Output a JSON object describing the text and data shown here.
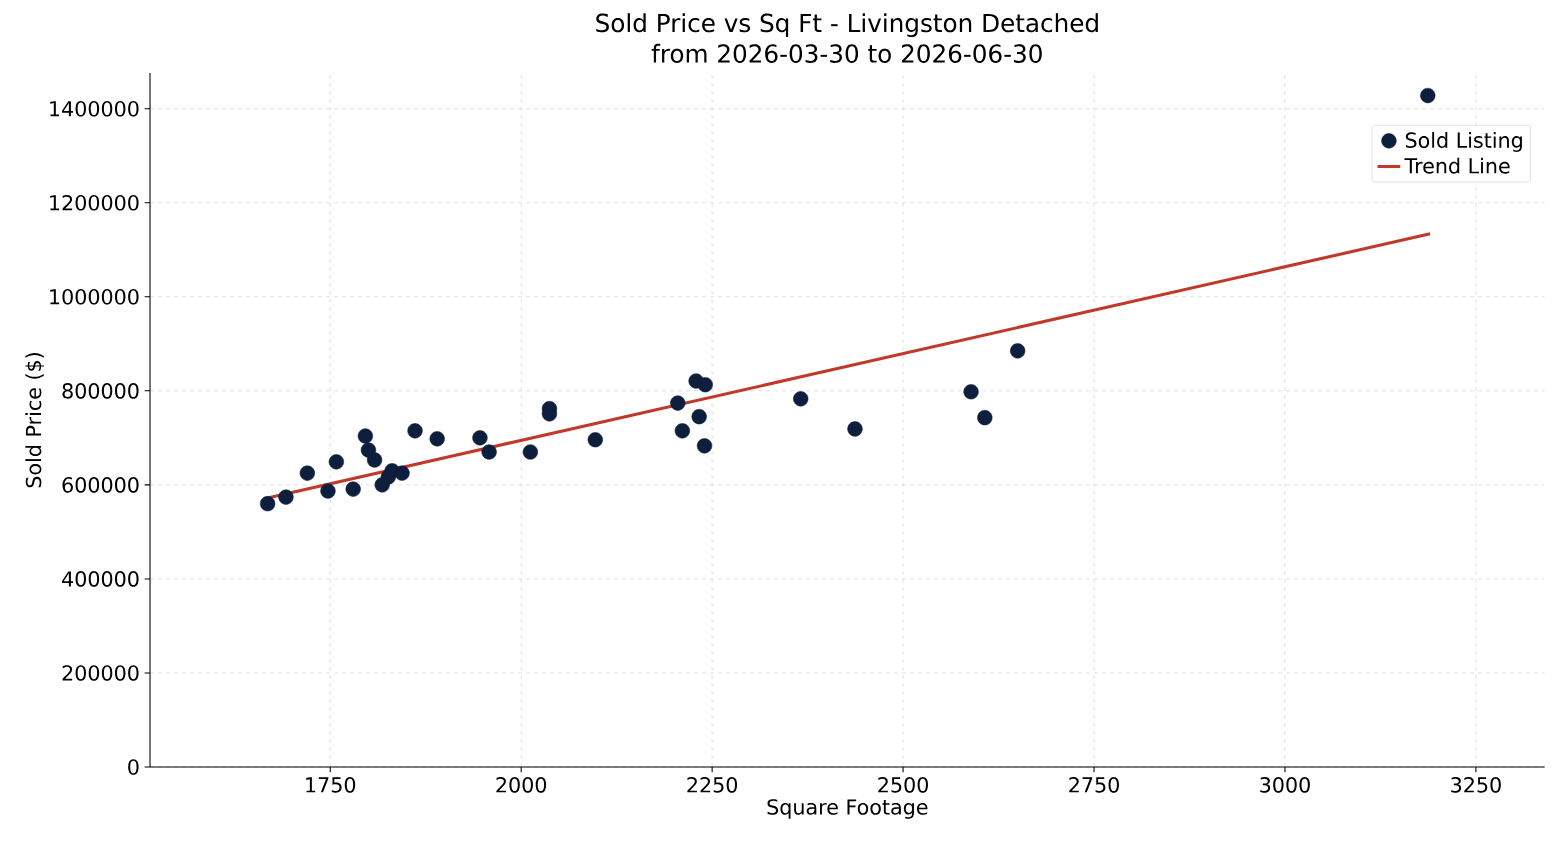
{
  "chart_data": {
    "type": "scatter",
    "title": "Sold Price vs Sq Ft - Livingston Detached",
    "subtitle": "from 2026-03-30 to 2026-06-30",
    "xlabel": "Square Footage",
    "ylabel": "Sold Price ($)",
    "xlim": [
      1514,
      3340
    ],
    "ylim": [
      0,
      1476000
    ],
    "xticks": [
      1750,
      2000,
      2250,
      2500,
      2750,
      3000,
      3250
    ],
    "yticks": [
      0,
      200000,
      400000,
      600000,
      800000,
      1000000,
      1200000,
      1400000
    ],
    "grid": true,
    "legend": "top right",
    "marker": "circle",
    "series": [
      {
        "name": "Sold Listing",
        "color": "#0d1f3c",
        "x": [
          1668,
          1692,
          1720,
          1747,
          1758,
          1780,
          1796,
          1800,
          1808,
          1818,
          1826,
          1831,
          1844,
          1861,
          1890,
          1946,
          1958,
          2012,
          2037,
          2037,
          2097,
          2205,
          2211,
          2229,
          2233,
          2240,
          2241,
          2366,
          2437,
          2589,
          2607,
          2650,
          3187
        ],
        "values": [
          560000,
          574000,
          625000,
          587000,
          649000,
          591000,
          704000,
          674000,
          653000,
          600000,
          617000,
          630000,
          625000,
          715000,
          698000,
          700000,
          670000,
          670000,
          762000,
          751000,
          696000,
          774000,
          715000,
          821000,
          745000,
          683000,
          813000,
          783000,
          719000,
          798000,
          743000,
          885000,
          1428000
        ]
      },
      {
        "name": "Trend Line",
        "type": "line",
        "marker": "none",
        "color": "#c0392b",
        "line_style": "solid",
        "x": [
          1668,
          3190
        ],
        "values": [
          572000,
          1134000
        ]
      }
    ]
  }
}
